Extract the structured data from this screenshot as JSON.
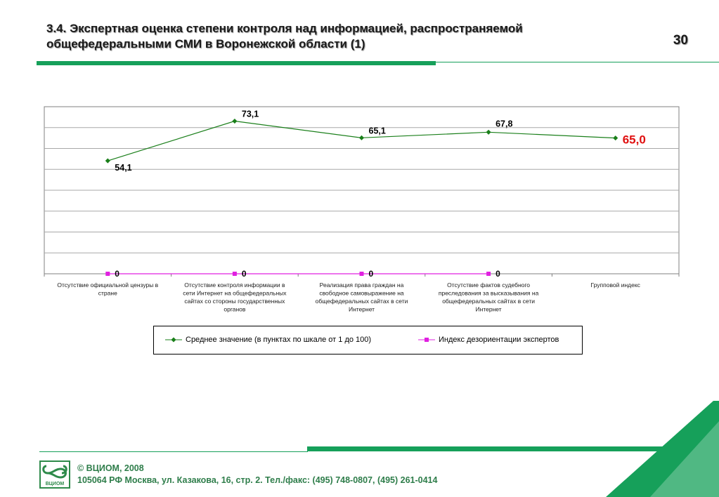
{
  "slide": {
    "title_line1": "3.4. Экспертная оценка степени контроля над информацией, распространяемой",
    "title_line2": "общефедеральными СМИ в Воронежской области (1)",
    "page_number": "30",
    "footer_line1": "© ВЦИОМ, 2008",
    "footer_line2": "105064 РФ Москва, ул. Казакова, 16, стр. 2.  Тел./факс: (495) 748-0807, (495) 261-0414",
    "logo_text": "ВЦИОМ",
    "colors": {
      "brand_green": "#16a05a",
      "footer_text": "#2e7d4a"
    }
  },
  "chart_data": {
    "type": "line",
    "title": "",
    "xlabel": "",
    "ylabel": "",
    "ylim": [
      0,
      80
    ],
    "grid": true,
    "legend_position": "bottom",
    "categories": [
      [
        "Отсутствие официальной цензуры в",
        "стране"
      ],
      [
        "Отсутствие контроля информации в",
        "сети Интернет на общефедеральных",
        "сайтах со стороны государственных",
        "органов"
      ],
      [
        "Реализация права граждан на",
        "свободное самовыражение на",
        "общефедеральных сайтах в сети",
        "Интернет"
      ],
      [
        "Отсутствие фактов судебного",
        "преследования за высказывания на",
        "общефедеральных сайтах в сети",
        "Интернет"
      ],
      [
        "Групповой индекс"
      ]
    ],
    "series": [
      {
        "name": "Среднее значение (в пунктах по шкале от 1 до 100)",
        "color": "#1a7f1a",
        "marker": "diamond",
        "values": [
          54.1,
          73.1,
          65.1,
          67.8,
          65.0
        ],
        "labels": [
          "54,1",
          "73,1",
          "65,1",
          "67,8",
          "65,0"
        ]
      },
      {
        "name": "Индекс дезориентации экспертов",
        "color": "#e020e0",
        "marker": "square",
        "values": [
          0,
          0,
          0,
          0,
          null
        ],
        "labels": [
          "0",
          "0",
          "0",
          "0",
          ""
        ]
      }
    ],
    "highlight_label_color": "#e01010"
  }
}
